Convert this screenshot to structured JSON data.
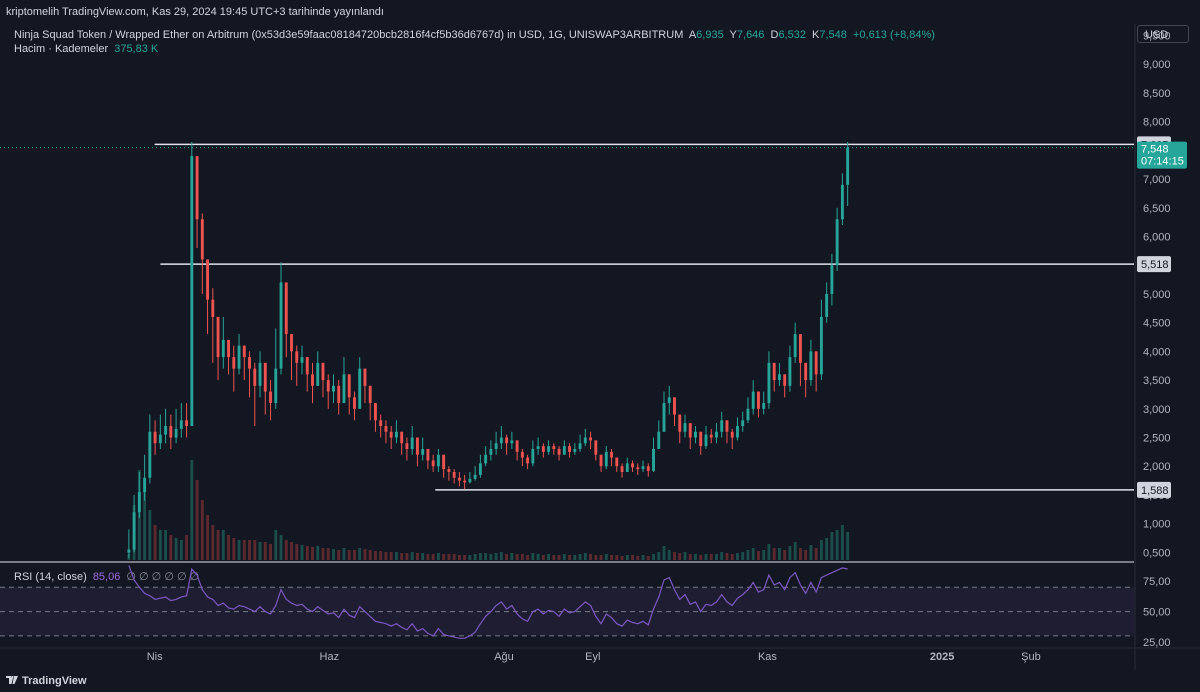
{
  "header": {
    "published_text": "kriptomelih TradingView.com, Kas 29, 2024 19:45 UTC+3 tarihinde yayınlandı"
  },
  "legend": {
    "symbol": "Ninja Squad Token / Wrapped Ether on Arbitrum (0x53d3e59faac08184720bcb2816f4cf5b36d6767d) in USD, 1G, UNISWAP3ARBITRUM",
    "open_key": "A",
    "open_val": "6,935",
    "high_key": "Y",
    "high_val": "7,646",
    "low_key": "D",
    "low_val": "6,532",
    "close_key": "K",
    "close_val": "7,548",
    "change": "+0,613 (+8,84%)",
    "volume_label": "Hacim · Kademeler",
    "volume_val": "375,83 K",
    "rsi_label": "RSI (14, close)",
    "rsi_val": "85,06",
    "rsi_placeholders": "∅ ∅ ∅ ∅ ∅ ∅"
  },
  "currency_button": "USD",
  "footer": {
    "brand": "TradingView"
  },
  "colors": {
    "up": "#26a69a",
    "down": "#ef5350",
    "rsi_line": "#7e57c2",
    "background": "#131722"
  },
  "chart_data": [
    {
      "type": "candlestick",
      "ylim": [
        0.35,
        9.7
      ],
      "y_ticks": [
        "0,500",
        "1,000",
        "1,500",
        "2,000",
        "2,500",
        "3,000",
        "3,500",
        "4,000",
        "4,500",
        "5,000",
        "5,500",
        "6,000",
        "6,500",
        "7,000",
        "7,500",
        "8,000",
        "8,500",
        "9,000",
        "9,500"
      ],
      "x_ticks": [
        "Nis",
        "Haz",
        "Ağu",
        "Eyl",
        "Kas",
        "2025",
        "Şub"
      ],
      "x_tick_dates": [
        "2024-04-01",
        "2024-06-01",
        "2024-08-01",
        "2024-09-01",
        "2024-11-01",
        "2025-01-01",
        "2025-02-01"
      ],
      "x_range": [
        "2024-02-07",
        "2025-03-09"
      ],
      "first_candle": "2024-03-23",
      "last_candle": "2024-11-29",
      "closes": [
        0.55,
        1.2,
        1.55,
        1.8,
        2.6,
        2.4,
        2.55,
        2.7,
        2.5,
        2.65,
        2.8,
        2.7,
        7.4,
        6.3,
        5.6,
        4.9,
        4.6,
        3.9,
        4.2,
        3.9,
        3.7,
        4.1,
        3.9,
        3.7,
        3.4,
        3.8,
        3.3,
        3.1,
        3.7,
        5.2,
        4.3,
        4.0,
        3.8,
        3.9,
        3.6,
        3.4,
        3.8,
        3.5,
        3.3,
        3.4,
        3.1,
        3.6,
        3.2,
        3.0,
        3.7,
        3.4,
        3.1,
        2.8,
        2.7,
        2.6,
        2.5,
        2.6,
        2.4,
        2.3,
        2.5,
        2.2,
        2.3,
        2.1,
        2.0,
        2.2,
        1.95,
        1.9,
        1.8,
        1.75,
        1.72,
        1.78,
        1.85,
        2.05,
        2.2,
        2.3,
        2.4,
        2.5,
        2.4,
        2.45,
        2.25,
        2.15,
        2.05,
        2.3,
        2.35,
        2.25,
        2.35,
        2.3,
        2.2,
        2.35,
        2.25,
        2.3,
        2.4,
        2.5,
        2.45,
        2.2,
        2.0,
        2.25,
        2.15,
        2.0,
        1.9,
        2.05,
        1.98,
        1.95,
        2.0,
        1.92,
        2.3,
        2.6,
        3.1,
        3.2,
        2.9,
        2.6,
        2.75,
        2.5,
        2.6,
        2.35,
        2.55,
        2.5,
        2.6,
        2.8,
        2.6,
        2.5,
        2.7,
        2.8,
        3.0,
        3.3,
        3.0,
        3.1,
        3.8,
        3.5,
        3.6,
        3.4,
        3.9,
        4.3,
        3.8,
        3.5,
        4.0,
        3.6,
        4.6,
        5.0,
        5.5,
        6.3,
        6.9,
        7.548
      ],
      "highs": [
        0.9,
        1.5,
        1.9,
        2.2,
        2.9,
        2.8,
        2.9,
        3.0,
        2.9,
        3.0,
        3.1,
        3.1,
        7.646,
        7.2,
        6.4,
        5.4,
        5.1,
        4.5,
        4.6,
        4.2,
        4.1,
        4.3,
        4.1,
        4.0,
        3.8,
        4.0,
        3.7,
        3.5,
        4.4,
        5.55,
        4.8,
        4.3,
        4.1,
        4.1,
        3.9,
        3.8,
        4.0,
        3.8,
        3.6,
        3.6,
        3.5,
        3.9,
        3.5,
        3.3,
        3.9,
        3.7,
        3.3,
        3.1,
        2.9,
        2.8,
        2.7,
        2.8,
        2.6,
        2.5,
        2.7,
        2.4,
        2.5,
        2.3,
        2.2,
        2.3,
        2.1,
        2.0,
        1.95,
        1.9,
        1.85,
        1.9,
        2.0,
        2.2,
        2.35,
        2.45,
        2.6,
        2.7,
        2.55,
        2.6,
        2.45,
        2.3,
        2.2,
        2.45,
        2.5,
        2.4,
        2.45,
        2.4,
        2.35,
        2.45,
        2.4,
        2.4,
        2.55,
        2.65,
        2.6,
        2.4,
        2.2,
        2.35,
        2.3,
        2.15,
        2.05,
        2.15,
        2.1,
        2.05,
        2.1,
        2.05,
        2.5,
        2.8,
        3.3,
        3.4,
        3.1,
        2.8,
        2.9,
        2.7,
        2.7,
        2.55,
        2.7,
        2.65,
        2.75,
        2.95,
        2.8,
        2.65,
        2.85,
        2.95,
        3.2,
        3.5,
        3.2,
        3.3,
        4.0,
        3.8,
        3.8,
        3.6,
        4.1,
        4.5,
        4.0,
        3.7,
        4.2,
        3.9,
        4.9,
        5.2,
        5.7,
        6.5,
        7.1,
        7.646
      ],
      "lows": [
        0.4,
        0.5,
        1.1,
        1.4,
        1.7,
        2.2,
        2.3,
        2.4,
        2.3,
        2.4,
        2.5,
        2.5,
        2.7,
        5.8,
        5.0,
        4.3,
        3.8,
        3.5,
        3.7,
        3.6,
        3.3,
        3.6,
        3.5,
        3.2,
        2.7,
        3.2,
        2.9,
        2.8,
        3.0,
        3.6,
        3.9,
        3.5,
        3.4,
        3.6,
        3.3,
        3.1,
        3.4,
        3.2,
        3.0,
        3.1,
        2.9,
        3.1,
        2.9,
        2.8,
        3.0,
        3.1,
        2.8,
        2.6,
        2.5,
        2.4,
        2.3,
        2.4,
        2.2,
        2.1,
        2.2,
        2.0,
        2.1,
        1.95,
        1.9,
        1.9,
        1.8,
        1.75,
        1.7,
        1.65,
        1.6,
        1.7,
        1.75,
        1.8,
        2.0,
        2.1,
        2.2,
        2.3,
        2.2,
        2.3,
        2.1,
        2.0,
        1.95,
        2.0,
        2.2,
        2.15,
        2.2,
        2.2,
        2.1,
        2.2,
        2.15,
        2.2,
        2.25,
        2.35,
        2.3,
        2.1,
        1.9,
        1.95,
        2.0,
        1.9,
        1.8,
        1.9,
        1.9,
        1.85,
        1.9,
        1.82,
        1.9,
        2.3,
        2.6,
        2.9,
        2.7,
        2.4,
        2.5,
        2.3,
        2.4,
        2.2,
        2.3,
        2.4,
        2.4,
        2.5,
        2.4,
        2.3,
        2.45,
        2.6,
        2.75,
        2.9,
        2.85,
        2.9,
        3.0,
        3.3,
        3.4,
        3.2,
        3.3,
        3.8,
        3.4,
        3.2,
        3.4,
        3.3,
        3.5,
        4.5,
        4.8,
        5.4,
        6.2,
        6.532
      ],
      "volume_rel": [
        0.06,
        0.55,
        0.9,
        0.7,
        0.5,
        0.35,
        0.3,
        0.3,
        0.25,
        0.22,
        0.2,
        0.25,
        1.0,
        0.8,
        0.6,
        0.45,
        0.35,
        0.3,
        0.3,
        0.25,
        0.22,
        0.2,
        0.2,
        0.2,
        0.2,
        0.18,
        0.18,
        0.16,
        0.3,
        0.25,
        0.2,
        0.18,
        0.16,
        0.15,
        0.14,
        0.13,
        0.14,
        0.12,
        0.12,
        0.11,
        0.1,
        0.12,
        0.1,
        0.1,
        0.12,
        0.11,
        0.1,
        0.09,
        0.09,
        0.08,
        0.08,
        0.08,
        0.07,
        0.07,
        0.08,
        0.07,
        0.07,
        0.06,
        0.06,
        0.07,
        0.06,
        0.06,
        0.06,
        0.05,
        0.05,
        0.05,
        0.06,
        0.07,
        0.07,
        0.06,
        0.07,
        0.08,
        0.06,
        0.07,
        0.06,
        0.06,
        0.05,
        0.07,
        0.06,
        0.05,
        0.06,
        0.05,
        0.05,
        0.06,
        0.05,
        0.05,
        0.06,
        0.07,
        0.06,
        0.05,
        0.05,
        0.06,
        0.05,
        0.05,
        0.04,
        0.05,
        0.05,
        0.04,
        0.05,
        0.04,
        0.06,
        0.08,
        0.14,
        0.1,
        0.08,
        0.07,
        0.08,
        0.06,
        0.06,
        0.05,
        0.06,
        0.06,
        0.06,
        0.08,
        0.07,
        0.06,
        0.07,
        0.08,
        0.1,
        0.12,
        0.09,
        0.1,
        0.16,
        0.12,
        0.12,
        0.1,
        0.14,
        0.18,
        0.12,
        0.1,
        0.15,
        0.12,
        0.2,
        0.22,
        0.28,
        0.3,
        0.35,
        0.28
      ],
      "horizontal_levels": [
        {
          "value": 7.605,
          "label": "7,605",
          "from": "2024-04-01"
        },
        {
          "value": 5.518,
          "label": "5,518",
          "from": "2024-04-03"
        },
        {
          "value": 1.588,
          "label": "1,588",
          "from": "2024-07-08"
        }
      ],
      "last_price": {
        "value": 7.548,
        "label": "7,548",
        "countdown": "07:14:15"
      }
    },
    {
      "type": "line",
      "series": [
        {
          "name": "RSI (14, close)",
          "last": 85.06
        }
      ],
      "ylim": [
        20,
        90
      ],
      "y_ticks": [
        "25,00",
        "50,00",
        "75,00"
      ],
      "bands": [
        30,
        50,
        70
      ],
      "rsi": [
        88,
        76,
        70,
        65,
        63,
        60,
        61,
        62,
        59,
        60,
        62,
        63,
        85,
        80,
        68,
        62,
        60,
        55,
        57,
        53,
        52,
        55,
        54,
        52,
        50,
        54,
        50,
        48,
        55,
        68,
        60,
        57,
        55,
        56,
        52,
        50,
        54,
        51,
        48,
        49,
        45,
        52,
        47,
        45,
        54,
        50,
        46,
        42,
        41,
        40,
        38,
        40,
        37,
        35,
        40,
        34,
        36,
        32,
        30,
        36,
        31,
        30,
        29,
        28,
        28,
        30,
        33,
        40,
        46,
        50,
        55,
        58,
        52,
        55,
        48,
        44,
        42,
        50,
        52,
        48,
        51,
        50,
        46,
        52,
        49,
        50,
        54,
        58,
        55,
        46,
        40,
        48,
        45,
        40,
        38,
        43,
        41,
        40,
        42,
        39,
        52,
        62,
        76,
        78,
        68,
        60,
        64,
        56,
        58,
        50,
        56,
        55,
        58,
        64,
        58,
        55,
        61,
        64,
        68,
        74,
        66,
        68,
        80,
        72,
        74,
        68,
        78,
        82,
        72,
        65,
        74,
        66,
        78,
        80,
        82,
        84,
        86,
        85.06
      ]
    }
  ]
}
